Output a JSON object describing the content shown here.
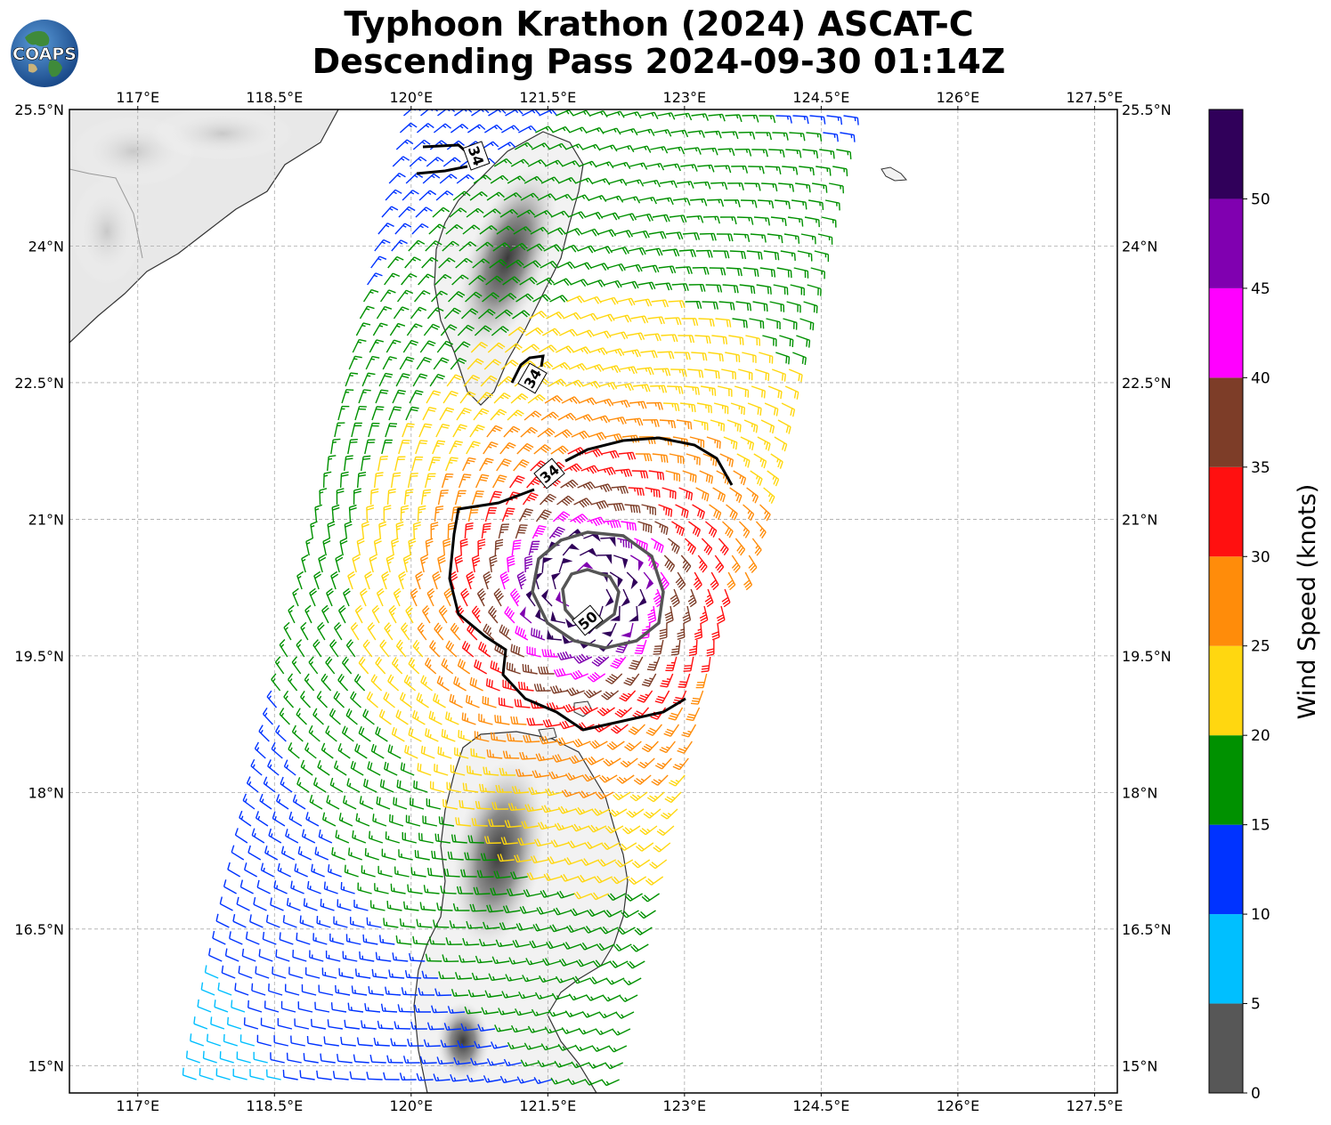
{
  "title": {
    "line1": "Typhoon Krathon (2024) ASCAT-C",
    "line2": "Descending Pass 2024-09-30 01:14Z"
  },
  "logo": {
    "text": "COAPS"
  },
  "map": {
    "lon_range": [
      116.25,
      127.75
    ],
    "lat_range": [
      14.7,
      25.5
    ],
    "lon_ticks": [
      "117°E",
      "118.5°E",
      "120°E",
      "121.5°E",
      "123°E",
      "124.5°E",
      "126°E",
      "127.5°E"
    ],
    "lat_ticks": [
      "25.5°N",
      "24°N",
      "22.5°N",
      "21°N",
      "19.5°N",
      "18°N",
      "16.5°N",
      "15°N"
    ],
    "lon_tick_values": [
      117,
      118.5,
      120,
      121.5,
      123,
      124.5,
      126,
      127.5
    ],
    "lat_tick_values": [
      25.5,
      24,
      22.5,
      21,
      19.5,
      18,
      16.5,
      15
    ],
    "gridlines": true,
    "storm_center": {
      "lon": 121.9,
      "lat": 20.2
    },
    "contours": [
      {
        "label": "34",
        "color": "#000000"
      },
      {
        "label": "34",
        "color": "#000000"
      },
      {
        "label": "34",
        "color": "#000000"
      },
      {
        "label": "50",
        "color": "#555555"
      }
    ]
  },
  "colorbar": {
    "title": "Wind Speed (knots)",
    "bins": [
      {
        "min": 0,
        "max": 5,
        "color": "#575757"
      },
      {
        "min": 5,
        "max": 10,
        "color": "#00bfff"
      },
      {
        "min": 10,
        "max": 15,
        "color": "#0033ff"
      },
      {
        "min": 15,
        "max": 20,
        "color": "#009100"
      },
      {
        "min": 20,
        "max": 25,
        "color": "#ffd710"
      },
      {
        "min": 25,
        "max": 30,
        "color": "#ff8c0a"
      },
      {
        "min": 30,
        "max": 35,
        "color": "#ff1010"
      },
      {
        "min": 35,
        "max": 40,
        "color": "#7d3d28"
      },
      {
        "min": 40,
        "max": 45,
        "color": "#ff00ff"
      },
      {
        "min": 45,
        "max": 50,
        "color": "#8000b0"
      },
      {
        "min": 50,
        "max": 55,
        "color": "#30005a"
      }
    ],
    "tick_labels": [
      "0",
      "5",
      "10",
      "15",
      "20",
      "25",
      "30",
      "35",
      "40",
      "45",
      "50"
    ]
  }
}
